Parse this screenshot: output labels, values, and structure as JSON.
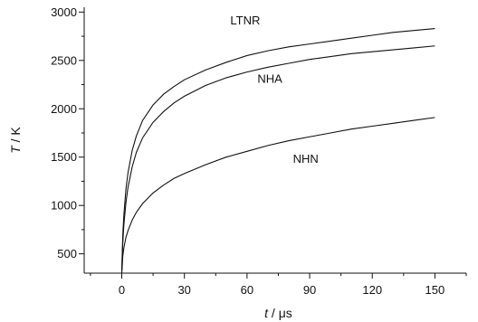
{
  "chart_data": {
    "type": "line",
    "xlabel_var": "t",
    "xlabel_unit": "μs",
    "ylabel_var": "T",
    "ylabel_unit": "K",
    "xlim": [
      -18,
      165
    ],
    "ylim": [
      300,
      3050
    ],
    "xticks": [
      0,
      30,
      60,
      90,
      120,
      150
    ],
    "yticks": [
      500,
      1000,
      1500,
      2000,
      2500,
      3000
    ],
    "xminor_step": 15,
    "yminor_step": 250,
    "grid": false,
    "series": [
      {
        "name": "LTNR",
        "x": [
          0,
          0.5,
          1,
          2,
          3,
          5,
          7,
          10,
          15,
          20,
          25,
          30,
          40,
          50,
          60,
          70,
          80,
          90,
          100,
          110,
          120,
          130,
          140,
          150
        ],
        "y": [
          330,
          700,
          900,
          1170,
          1340,
          1570,
          1720,
          1880,
          2040,
          2150,
          2230,
          2300,
          2400,
          2480,
          2550,
          2600,
          2640,
          2670,
          2700,
          2730,
          2760,
          2790,
          2810,
          2830
        ]
      },
      {
        "name": "NHA",
        "x": [
          0,
          0.5,
          1,
          2,
          3,
          5,
          7,
          10,
          15,
          20,
          25,
          30,
          40,
          50,
          60,
          70,
          80,
          90,
          100,
          110,
          120,
          130,
          140,
          150
        ],
        "y": [
          320,
          620,
          800,
          1030,
          1190,
          1400,
          1550,
          1700,
          1860,
          1970,
          2060,
          2130,
          2240,
          2320,
          2380,
          2430,
          2470,
          2510,
          2540,
          2570,
          2590,
          2610,
          2630,
          2650
        ]
      },
      {
        "name": "NHN",
        "x": [
          0,
          0.5,
          1,
          2,
          3,
          5,
          7,
          10,
          15,
          20,
          25,
          30,
          40,
          50,
          60,
          70,
          80,
          90,
          100,
          110,
          120,
          130,
          140,
          150
        ],
        "y": [
          300,
          480,
          560,
          670,
          740,
          850,
          930,
          1020,
          1130,
          1210,
          1280,
          1330,
          1420,
          1500,
          1560,
          1620,
          1670,
          1710,
          1750,
          1790,
          1820,
          1850,
          1880,
          1910
        ]
      }
    ],
    "labels": [
      {
        "text": "LTNR",
        "x": 52,
        "y": 2870
      },
      {
        "text": "NHA",
        "x": 65,
        "y": 2270
      },
      {
        "text": "NHN",
        "x": 82,
        "y": 1440
      }
    ]
  }
}
